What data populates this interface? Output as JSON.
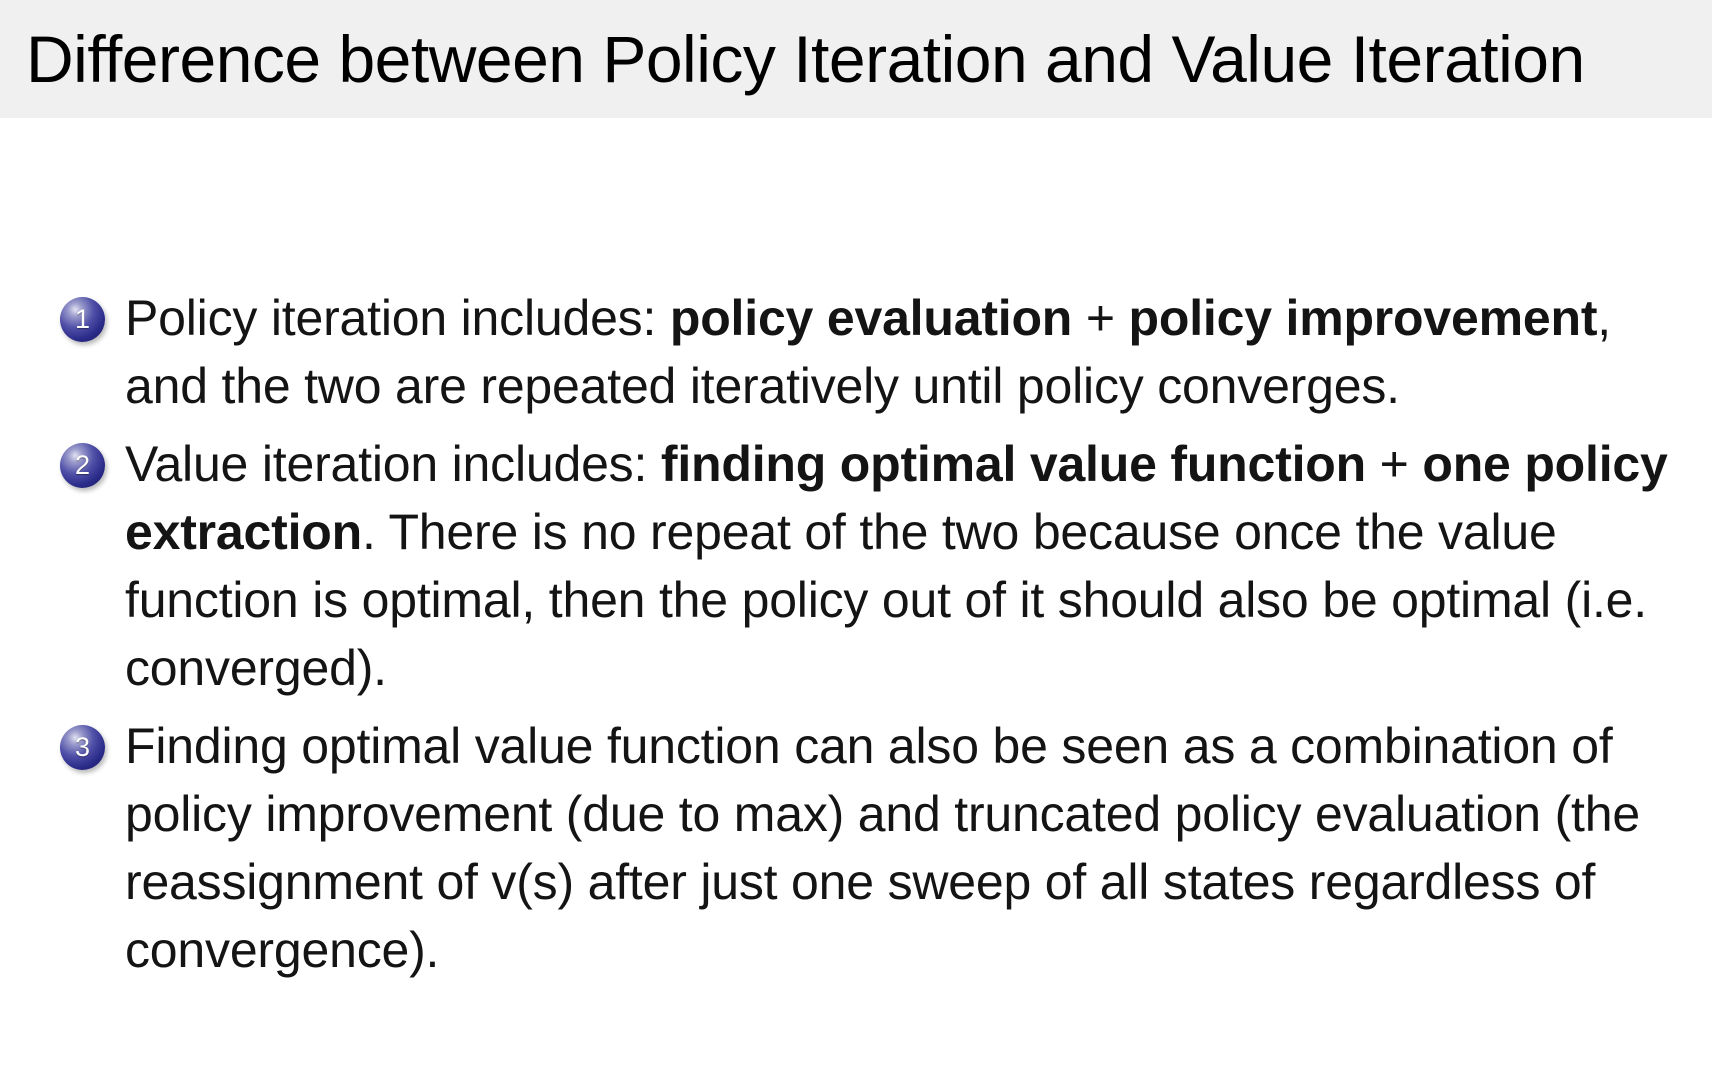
{
  "slide": {
    "title": "Difference between Policy Iteration and Value Iteration",
    "items": [
      {
        "number": "1",
        "segments": [
          {
            "text": "Policy iteration includes: ",
            "bold": false
          },
          {
            "text": "policy evaluation",
            "bold": true
          },
          {
            "text": " + ",
            "bold": false
          },
          {
            "text": "policy improvement",
            "bold": true
          },
          {
            "text": ", and the two are repeated iteratively until policy converges.",
            "bold": false
          }
        ]
      },
      {
        "number": "2",
        "segments": [
          {
            "text": "Value iteration includes: ",
            "bold": false
          },
          {
            "text": "finding optimal value function",
            "bold": true
          },
          {
            "text": " + ",
            "bold": false
          },
          {
            "text": "one policy extraction",
            "bold": true
          },
          {
            "text": ". There is no repeat of the two because once the value function is optimal, then the policy out of it should also be optimal (i.e. converged).",
            "bold": false
          }
        ]
      },
      {
        "number": "3",
        "segments": [
          {
            "text": "Finding optimal value function can also be seen as a combination of policy improvement (due to max) and truncated policy evaluation (the reassignment of v(s) after just one sweep of all states regardless of convergence).",
            "bold": false
          }
        ]
      }
    ]
  },
  "colors": {
    "title_bar_bg": "#f0f0f0",
    "title_text": "#000000",
    "body_text": "#141414",
    "ball_base": "#2b2b8a",
    "ball_highlight": "#e2e2f2",
    "ball_number_text": "#ffffff"
  }
}
